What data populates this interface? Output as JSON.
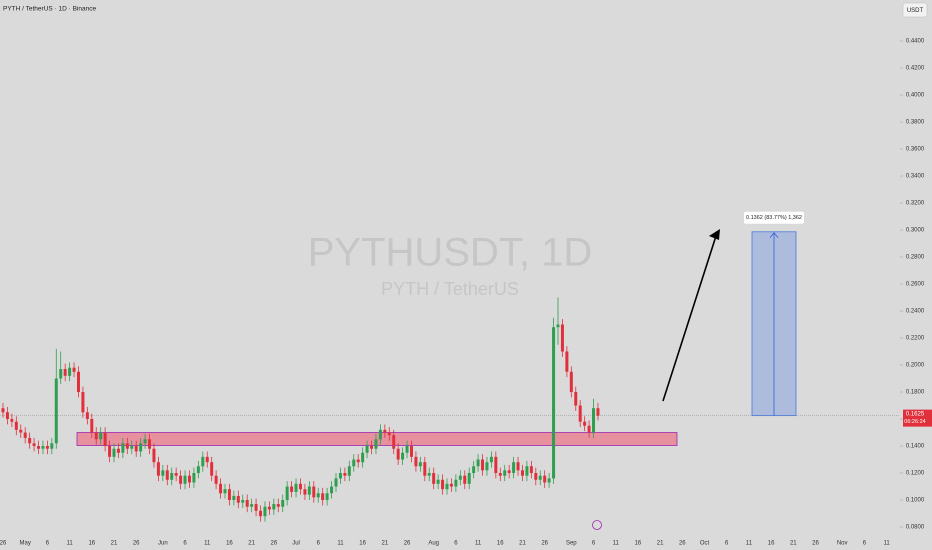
{
  "chart_data": {
    "type": "candlestick",
    "title": "PYTH / TetherUS · 1D · Binance",
    "watermark": "PYTHUSDT, 1D",
    "watermark_subtitle": "PYTH / TetherUS",
    "currency": "USDT",
    "last_price": 0.1625,
    "countdown": "06:26:24",
    "up_color": "#2e9e4f",
    "down_color": "#e0303c",
    "ylim": [
      0.0726,
      0.4704
    ],
    "yticks": [
      {
        "value": 0.08,
        "label": "0.0800"
      },
      {
        "value": 0.1,
        "label": "0.1000"
      },
      {
        "value": 0.12,
        "label": "0.1200"
      },
      {
        "value": 0.14,
        "label": "0.1400"
      },
      {
        "value": 0.16,
        "label": "0.1600"
      },
      {
        "value": 0.18,
        "label": "0.1800"
      },
      {
        "value": 0.2,
        "label": "0.2000"
      },
      {
        "value": 0.22,
        "label": "0.2200"
      },
      {
        "value": 0.24,
        "label": "0.2400"
      },
      {
        "value": 0.26,
        "label": "0.2600"
      },
      {
        "value": 0.28,
        "label": "0.2800"
      },
      {
        "value": 0.3,
        "label": "0.3000"
      },
      {
        "value": 0.32,
        "label": "0.3200"
      },
      {
        "value": 0.34,
        "label": "0.3400"
      },
      {
        "value": 0.36,
        "label": "0.3600"
      },
      {
        "value": 0.38,
        "label": "0.3800"
      },
      {
        "value": 0.4,
        "label": "0.4000"
      },
      {
        "value": 0.42,
        "label": "0.4200"
      },
      {
        "value": 0.44,
        "label": "0.4400"
      }
    ],
    "categories": [
      "26",
      null,
      null,
      null,
      null,
      "May",
      null,
      null,
      null,
      null,
      "6",
      null,
      null,
      null,
      null,
      "11",
      null,
      null,
      null,
      null,
      "16",
      null,
      null,
      null,
      null,
      "21",
      null,
      null,
      null,
      null,
      "26",
      null,
      null,
      null,
      null,
      null,
      "Jun",
      null,
      null,
      null,
      null,
      "6",
      null,
      null,
      null,
      null,
      "11",
      null,
      null,
      null,
      null,
      "16",
      null,
      null,
      null,
      null,
      "21",
      null,
      null,
      null,
      null,
      "26",
      null,
      null,
      null,
      null,
      "Jul",
      null,
      null,
      null,
      null,
      "6",
      null,
      null,
      null,
      null,
      "11",
      null,
      null,
      null,
      null,
      "16",
      null,
      null,
      null,
      null,
      "21",
      null,
      null,
      null,
      null,
      "26",
      null,
      null,
      null,
      null,
      null,
      "Aug",
      null,
      null,
      null,
      null,
      "6",
      null,
      null,
      null,
      null,
      "11",
      null,
      null,
      null,
      null,
      "16",
      null,
      null,
      null,
      null,
      "21",
      null,
      null,
      null,
      null,
      "26",
      null,
      null,
      null,
      null,
      null,
      "Sep",
      null,
      null,
      null,
      null,
      "6",
      null,
      null,
      null,
      null,
      "11",
      null,
      null,
      null,
      null,
      "16",
      null,
      null,
      null,
      null,
      "21",
      null,
      null,
      null,
      null,
      "26",
      null,
      null,
      null,
      null,
      "Oct",
      null,
      null,
      null,
      null,
      "6",
      null,
      null,
      null,
      null,
      "11",
      null,
      null,
      null,
      null,
      "16",
      null,
      null,
      null,
      null,
      "21",
      null,
      null,
      null,
      null,
      "26",
      null,
      null,
      null,
      null,
      null,
      "Nov",
      null,
      null,
      null,
      null,
      "6",
      null,
      null,
      null,
      null,
      "11"
    ],
    "open": [
      0.168,
      0.165,
      0.16,
      0.158,
      0.152,
      0.15,
      0.146,
      0.142,
      0.14,
      0.138,
      0.14,
      0.138,
      0.142,
      0.19,
      0.197,
      0.192,
      0.198,
      0.195,
      0.18,
      0.165,
      0.16,
      0.15,
      0.145,
      0.15,
      0.14,
      0.132,
      0.138,
      0.135,
      0.142,
      0.138,
      0.14,
      0.136,
      0.142,
      0.145,
      0.138,
      0.128,
      0.118,
      0.122,
      0.115,
      0.12,
      0.118,
      0.112,
      0.118,
      0.113,
      0.12,
      0.125,
      0.132,
      0.128,
      0.118,
      0.112,
      0.105,
      0.108,
      0.1,
      0.103,
      0.098,
      0.1,
      0.095,
      0.097,
      0.092,
      0.088,
      0.095,
      0.093,
      0.097,
      0.095,
      0.1,
      0.11,
      0.106,
      0.112,
      0.108,
      0.104,
      0.11,
      0.102,
      0.105,
      0.1,
      0.105,
      0.11,
      0.116,
      0.12,
      0.118,
      0.125,
      0.13,
      0.128,
      0.135,
      0.14,
      0.138,
      0.145,
      0.152,
      0.15,
      0.148,
      0.138,
      0.13,
      0.135,
      0.14,
      0.132,
      0.125,
      0.128,
      0.118,
      0.12,
      0.112,
      0.115,
      0.108,
      0.112,
      0.11,
      0.115,
      0.118,
      0.112,
      0.12,
      0.125,
      0.13,
      0.122,
      0.128,
      0.132,
      0.12,
      0.118,
      0.122,
      0.12,
      0.128,
      0.122,
      0.118,
      0.125,
      0.12,
      0.115,
      0.118,
      0.113,
      0.116,
      0.228,
      0.23,
      0.21,
      0.195,
      0.18,
      0.17,
      0.158,
      0.155,
      0.15,
      0.168,
      null,
      null,
      null,
      null,
      null,
      null,
      null,
      null,
      null,
      null,
      null,
      null,
      null,
      null,
      null,
      null,
      null,
      null,
      null,
      null,
      null,
      null,
      null,
      null,
      null,
      null,
      null,
      null,
      null,
      null,
      null,
      null,
      null,
      null,
      null,
      null,
      null,
      null,
      null,
      null,
      null,
      null,
      null,
      null,
      null,
      null,
      null,
      null,
      null,
      null,
      null,
      null,
      null,
      null,
      null,
      null,
      null,
      null,
      null,
      null,
      null,
      null,
      null,
      null,
      null
    ],
    "high": [
      0.172,
      0.169,
      0.164,
      0.162,
      0.156,
      0.154,
      0.15,
      0.146,
      0.144,
      0.144,
      0.144,
      0.146,
      0.212,
      0.21,
      0.201,
      0.202,
      0.202,
      0.199,
      0.184,
      0.169,
      0.164,
      0.154,
      0.154,
      0.154,
      0.144,
      0.142,
      0.142,
      0.146,
      0.146,
      0.144,
      0.144,
      0.146,
      0.149,
      0.149,
      0.142,
      0.132,
      0.126,
      0.126,
      0.124,
      0.124,
      0.122,
      0.122,
      0.122,
      0.124,
      0.129,
      0.136,
      0.136,
      0.132,
      0.122,
      0.116,
      0.112,
      0.112,
      0.107,
      0.107,
      0.104,
      0.104,
      0.101,
      0.101,
      0.096,
      0.099,
      0.099,
      0.101,
      0.101,
      0.104,
      0.114,
      0.114,
      0.116,
      0.116,
      0.112,
      0.114,
      0.114,
      0.109,
      0.109,
      0.109,
      0.114,
      0.12,
      0.124,
      0.124,
      0.129,
      0.134,
      0.134,
      0.139,
      0.144,
      0.144,
      0.149,
      0.156,
      0.156,
      0.154,
      0.152,
      0.142,
      0.139,
      0.144,
      0.144,
      0.136,
      0.132,
      0.132,
      0.124,
      0.124,
      0.119,
      0.119,
      0.116,
      0.116,
      0.119,
      0.122,
      0.122,
      0.124,
      0.129,
      0.134,
      0.134,
      0.132,
      0.136,
      0.136,
      0.124,
      0.126,
      0.126,
      0.132,
      0.132,
      0.126,
      0.129,
      0.129,
      0.124,
      0.122,
      0.122,
      0.12,
      0.235,
      0.25,
      0.234,
      0.214,
      0.199,
      0.184,
      0.174,
      0.162,
      0.159,
      0.175,
      0.172,
      null,
      null,
      null,
      null,
      null,
      null,
      null,
      null,
      null,
      null,
      null,
      null,
      null,
      null,
      null,
      null,
      null,
      null,
      null,
      null,
      null,
      null,
      null,
      null,
      null,
      null,
      null,
      null,
      null,
      null,
      null,
      null,
      null,
      null,
      null,
      null,
      null,
      null,
      null,
      null,
      null,
      null,
      null,
      null,
      null,
      null,
      null,
      null,
      null,
      null,
      null,
      null,
      null,
      null,
      null,
      null,
      null,
      null,
      null,
      null,
      null,
      null,
      null,
      null,
      null
    ],
    "low": [
      0.161,
      0.156,
      0.154,
      0.148,
      0.146,
      0.142,
      0.138,
      0.136,
      0.134,
      0.134,
      0.134,
      0.134,
      0.138,
      0.186,
      0.188,
      0.188,
      0.191,
      0.176,
      0.161,
      0.156,
      0.146,
      0.141,
      0.141,
      0.136,
      0.128,
      0.128,
      0.131,
      0.131,
      0.134,
      0.134,
      0.132,
      0.132,
      0.138,
      0.134,
      0.124,
      0.114,
      0.114,
      0.111,
      0.111,
      0.114,
      0.108,
      0.108,
      0.109,
      0.109,
      0.116,
      0.121,
      0.124,
      0.114,
      0.108,
      0.101,
      0.101,
      0.096,
      0.096,
      0.094,
      0.094,
      0.091,
      0.091,
      0.088,
      0.084,
      0.084,
      0.089,
      0.089,
      0.091,
      0.091,
      0.096,
      0.102,
      0.102,
      0.104,
      0.1,
      0.1,
      0.098,
      0.098,
      0.096,
      0.096,
      0.101,
      0.106,
      0.112,
      0.114,
      0.114,
      0.121,
      0.124,
      0.124,
      0.131,
      0.134,
      0.134,
      0.141,
      0.146,
      0.144,
      0.134,
      0.126,
      0.126,
      0.131,
      0.128,
      0.121,
      0.121,
      0.114,
      0.114,
      0.108,
      0.108,
      0.104,
      0.104,
      0.106,
      0.106,
      0.111,
      0.108,
      0.108,
      0.116,
      0.121,
      0.118,
      0.118,
      0.124,
      0.116,
      0.114,
      0.114,
      0.116,
      0.116,
      0.118,
      0.114,
      0.114,
      0.116,
      0.111,
      0.111,
      0.109,
      0.109,
      0.112,
      0.215,
      0.206,
      0.191,
      0.176,
      0.166,
      0.154,
      0.151,
      0.146,
      0.146,
      0.159,
      null,
      null,
      null,
      null,
      null,
      null,
      null,
      null,
      null,
      null,
      null,
      null,
      null,
      null,
      null,
      null,
      null,
      null,
      null,
      null,
      null,
      null,
      null,
      null,
      null,
      null,
      null,
      null,
      null,
      null,
      null,
      null,
      null,
      null,
      null,
      null,
      null,
      null,
      null,
      null,
      null,
      null,
      null,
      null,
      null,
      null,
      null,
      null,
      null,
      null,
      null,
      null,
      null,
      null,
      null,
      null,
      null,
      null,
      null,
      null,
      null,
      null,
      null,
      null,
      null
    ],
    "close": [
      0.165,
      0.16,
      0.158,
      0.152,
      0.15,
      0.146,
      0.142,
      0.14,
      0.138,
      0.14,
      0.138,
      0.142,
      0.19,
      0.197,
      0.192,
      0.198,
      0.195,
      0.18,
      0.165,
      0.16,
      0.15,
      0.145,
      0.15,
      0.14,
      0.132,
      0.138,
      0.135,
      0.142,
      0.138,
      0.14,
      0.136,
      0.142,
      0.145,
      0.138,
      0.128,
      0.118,
      0.122,
      0.115,
      0.12,
      0.118,
      0.112,
      0.118,
      0.113,
      0.12,
      0.125,
      0.132,
      0.128,
      0.118,
      0.112,
      0.105,
      0.108,
      0.1,
      0.103,
      0.098,
      0.1,
      0.095,
      0.097,
      0.092,
      0.088,
      0.095,
      0.093,
      0.097,
      0.095,
      0.1,
      0.11,
      0.106,
      0.112,
      0.108,
      0.104,
      0.11,
      0.102,
      0.105,
      0.1,
      0.105,
      0.11,
      0.116,
      0.12,
      0.118,
      0.125,
      0.13,
      0.128,
      0.135,
      0.14,
      0.138,
      0.145,
      0.152,
      0.15,
      0.148,
      0.138,
      0.13,
      0.135,
      0.14,
      0.132,
      0.125,
      0.128,
      0.118,
      0.12,
      0.112,
      0.115,
      0.108,
      0.112,
      0.11,
      0.115,
      0.118,
      0.112,
      0.12,
      0.125,
      0.13,
      0.122,
      0.128,
      0.132,
      0.12,
      0.118,
      0.122,
      0.12,
      0.128,
      0.122,
      0.118,
      0.125,
      0.12,
      0.115,
      0.118,
      0.113,
      0.116,
      0.228,
      0.23,
      0.21,
      0.195,
      0.18,
      0.17,
      0.158,
      0.155,
      0.15,
      0.168,
      0.1625,
      null,
      null,
      null,
      null,
      null,
      null,
      null,
      null,
      null,
      null,
      null,
      null,
      null,
      null,
      null,
      null,
      null,
      null,
      null,
      null,
      null,
      null,
      null,
      null,
      null,
      null,
      null,
      null,
      null,
      null,
      null,
      null,
      null,
      null,
      null,
      null,
      null,
      null,
      null,
      null,
      null,
      null,
      null,
      null,
      null,
      null,
      null,
      null,
      null,
      null,
      null,
      null,
      null,
      null,
      null,
      null,
      null,
      null,
      null,
      null,
      null,
      null,
      null,
      null,
      null
    ],
    "support_zone": {
      "top": 0.15,
      "bottom": 0.1404
    },
    "target": {
      "from": 0.1625,
      "to": 0.2987,
      "label": "0.1362 (83.77%) 1,362"
    }
  }
}
